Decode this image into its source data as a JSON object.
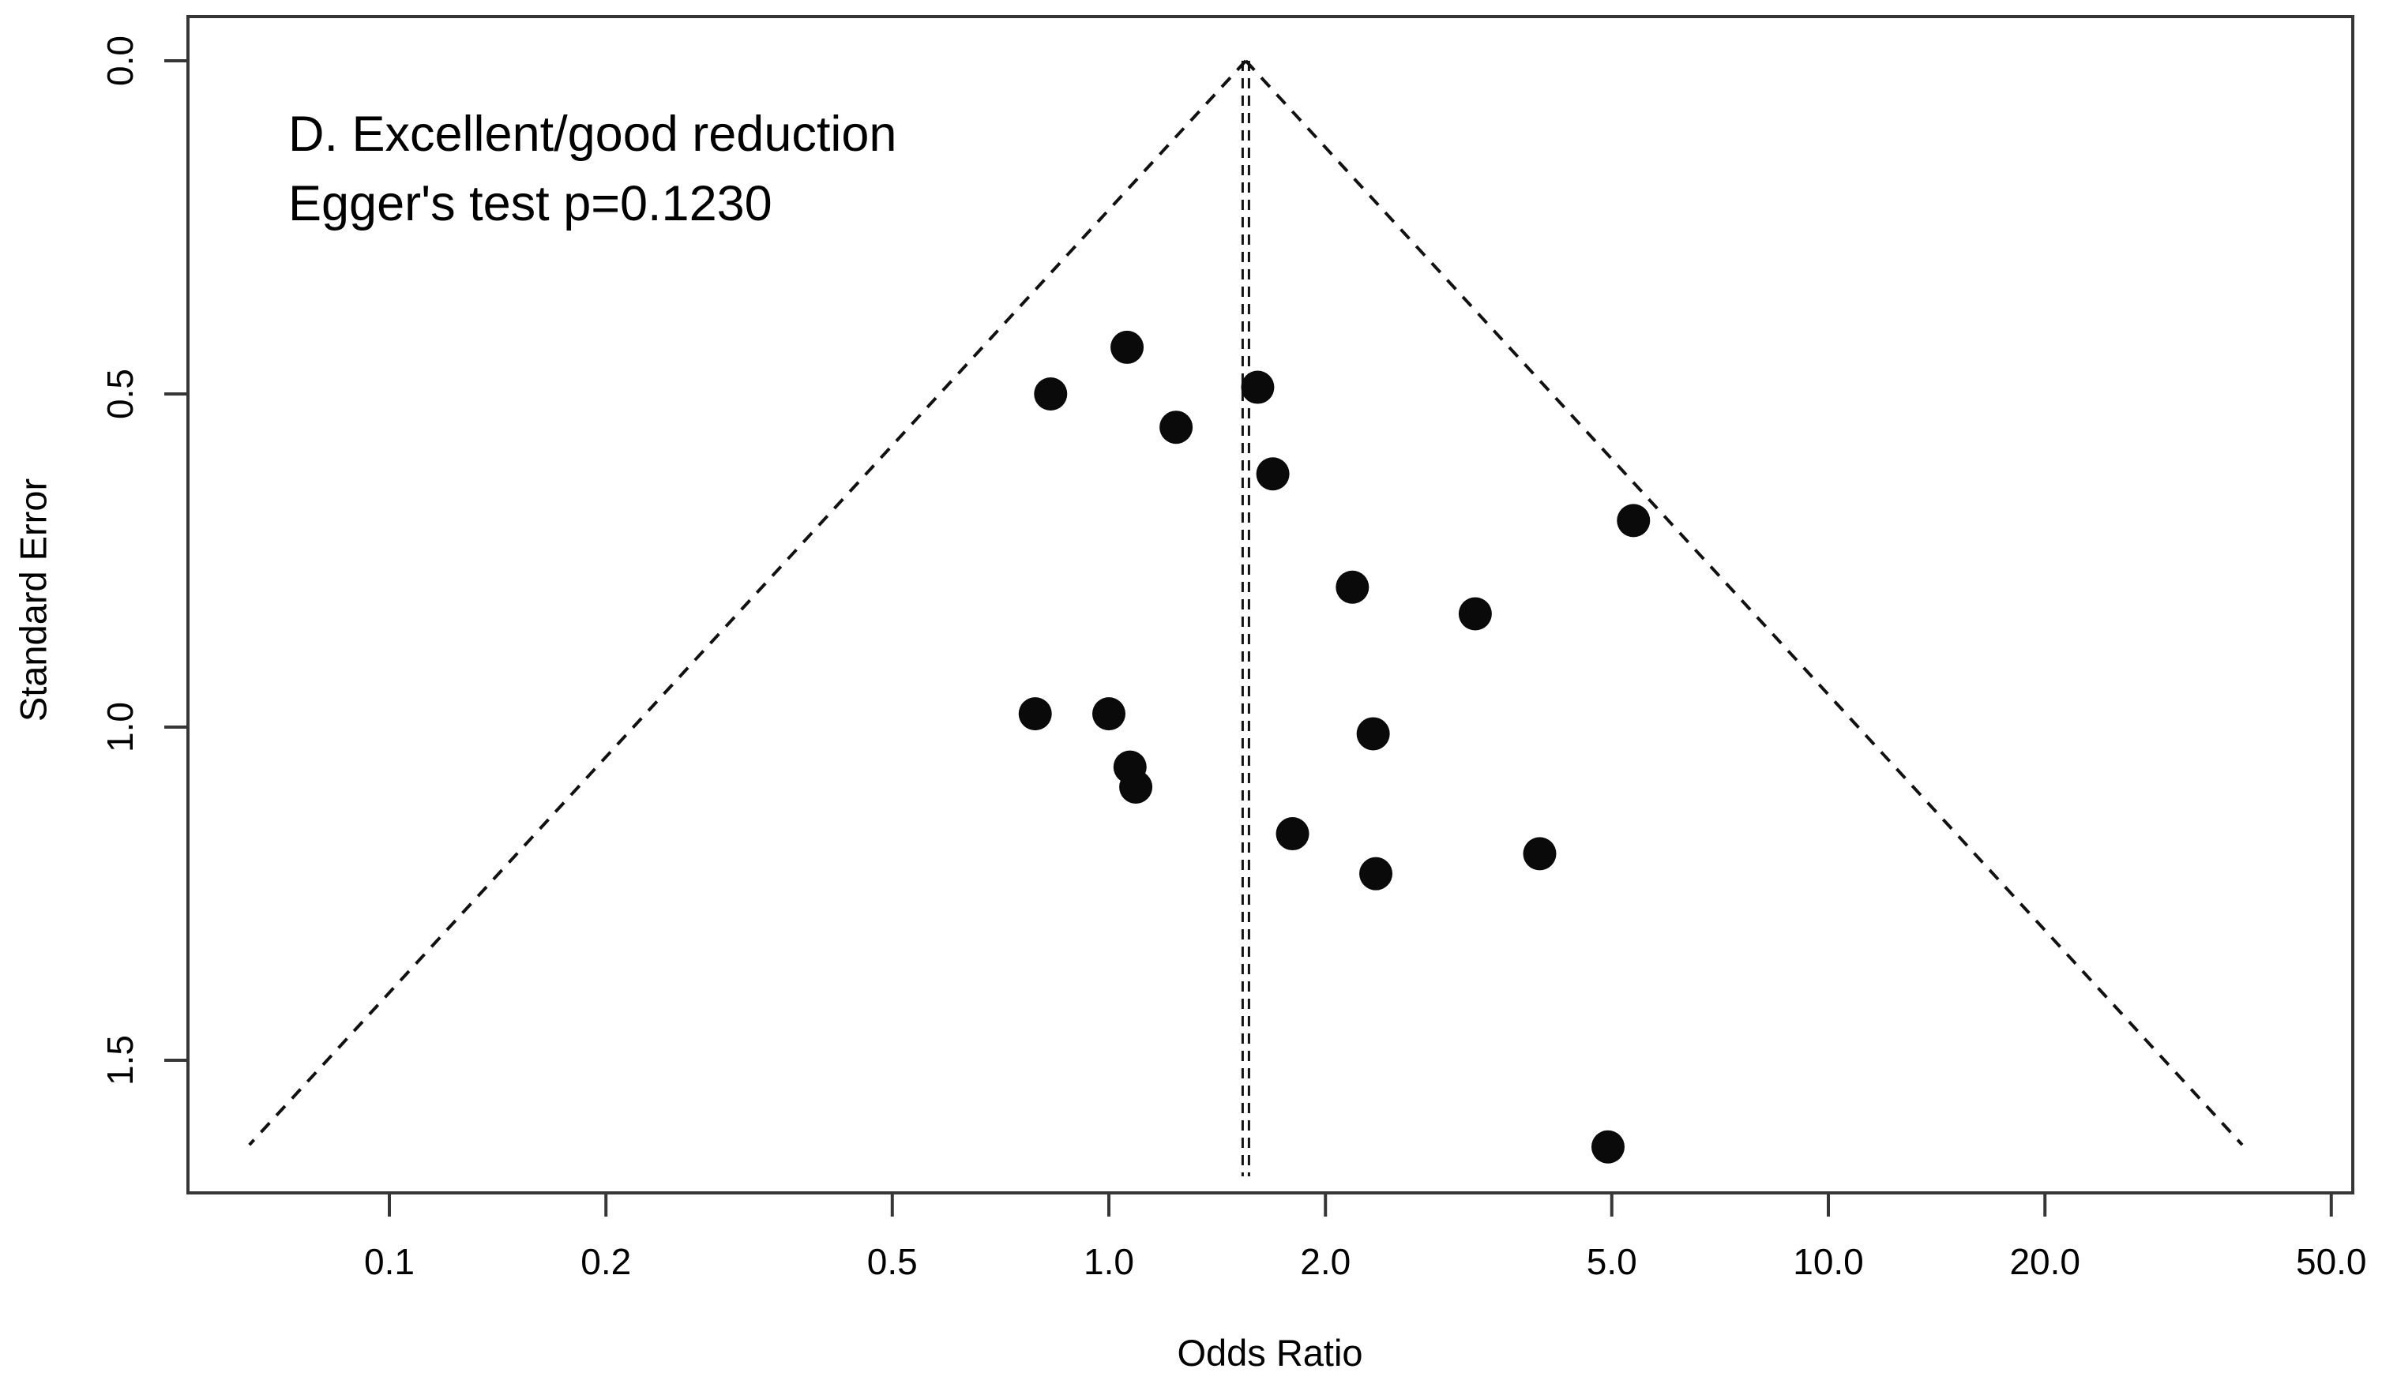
{
  "figure": {
    "background": "#ffffff",
    "frame_color": "#363636",
    "text_color": "#000000",
    "point_color": "#0a0a0a",
    "dash_color": "#111111"
  },
  "chart_data": {
    "type": "scatter",
    "subtype": "funnel-plot",
    "title": "D. Excellent/good reduction",
    "annotation": "Egger's test p=0.1230",
    "xlabel": "Odds Ratio",
    "ylabel": "Standard Error",
    "x_scale": "log10",
    "xlim": [
      0.053,
      53.6
    ],
    "ylim_se_top_to_bottom": [
      0.0,
      1.7
    ],
    "y_axis_inverted": true,
    "grid": false,
    "legend": "none",
    "x_ticks": [
      0.1,
      0.2,
      0.5,
      1.0,
      2.0,
      5.0,
      10.0,
      20.0,
      50.0
    ],
    "x_tick_labels": [
      "0.1",
      "0.2",
      "0.5",
      "1.0",
      "2.0",
      "5.0",
      "10.0",
      "20.0",
      "50.0"
    ],
    "y_ticks": [
      0.0,
      0.5,
      1.0,
      1.5
    ],
    "y_tick_labels": [
      "0.0",
      "0.5",
      "1.0",
      "1.5"
    ],
    "pooled_or": 1.55,
    "funnel": {
      "z": 1.96,
      "max_se": 1.627,
      "line_style": "dashed"
    },
    "center_line": {
      "or": 1.55,
      "style": "double-dashed-vertical"
    },
    "points": [
      {
        "or": 0.83,
        "se": 0.5
      },
      {
        "or": 1.06,
        "se": 0.43
      },
      {
        "or": 1.24,
        "se": 0.55
      },
      {
        "or": 1.61,
        "se": 0.49
      },
      {
        "or": 1.69,
        "se": 0.62
      },
      {
        "or": 2.18,
        "se": 0.79
      },
      {
        "or": 3.23,
        "se": 0.83
      },
      {
        "or": 5.36,
        "se": 0.69
      },
      {
        "or": 0.79,
        "se": 0.98
      },
      {
        "or": 1.0,
        "se": 0.98
      },
      {
        "or": 1.07,
        "se": 1.06
      },
      {
        "or": 1.09,
        "se": 1.09
      },
      {
        "or": 2.33,
        "se": 1.01
      },
      {
        "or": 1.8,
        "se": 1.16
      },
      {
        "or": 2.35,
        "se": 1.22
      },
      {
        "or": 3.97,
        "se": 1.19
      },
      {
        "or": 4.94,
        "se": 1.63
      }
    ]
  }
}
